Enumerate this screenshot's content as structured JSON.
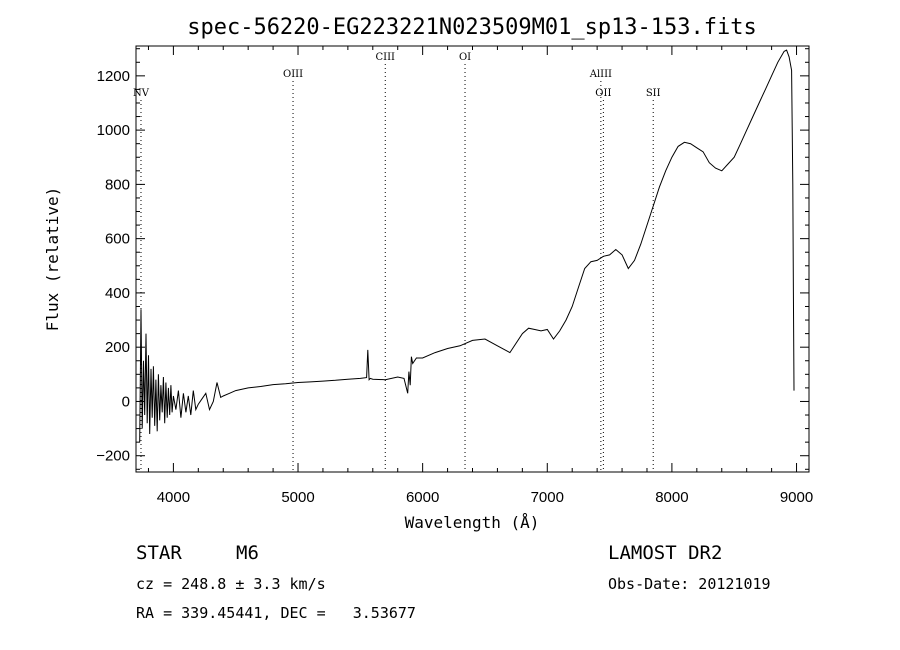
{
  "chart_data": {
    "type": "line",
    "title": "spec-56220-EG223221N023509M01_sp13-153.fits",
    "xlabel": "Wavelength (Å)",
    "ylabel": "Flux (relative)",
    "xlim": [
      3700,
      9100
    ],
    "ylim": [
      -260,
      1310
    ],
    "xticks": [
      4000,
      5000,
      6000,
      7000,
      8000,
      9000
    ],
    "yticks": [
      -200,
      0,
      200,
      400,
      600,
      800,
      1000,
      1200
    ],
    "grid": false,
    "series": [
      {
        "x": [
          3730,
          3740,
          3750,
          3760,
          3770,
          3780,
          3790,
          3800,
          3810,
          3820,
          3830,
          3840,
          3850,
          3860,
          3870,
          3880,
          3890,
          3900,
          3910,
          3920,
          3930,
          3940,
          3950,
          3960,
          3970,
          3980,
          3990,
          4000,
          4020,
          4040,
          4060,
          4080,
          4100,
          4120,
          4140,
          4160,
          4180,
          4200,
          4230,
          4260,
          4290,
          4320,
          4350,
          4380,
          4400,
          4450,
          4500,
          4550,
          4600,
          4700,
          4800,
          4900,
          5000,
          5100,
          5200,
          5300,
          5400,
          5500,
          5550,
          5560,
          5570,
          5580,
          5600,
          5700,
          5800,
          5850,
          5880,
          5890,
          5900,
          5910,
          5920,
          5950,
          6000,
          6100,
          6200,
          6300,
          6400,
          6500,
          6600,
          6700,
          6800,
          6850,
          6900,
          6950,
          7000,
          7050,
          7100,
          7150,
          7200,
          7250,
          7300,
          7350,
          7400,
          7450,
          7500,
          7550,
          7600,
          7650,
          7700,
          7750,
          7800,
          7850,
          7900,
          7950,
          8000,
          8050,
          8100,
          8150,
          8200,
          8250,
          8300,
          8350,
          8400,
          8450,
          8500,
          8550,
          8600,
          8650,
          8700,
          8750,
          8800,
          8850,
          8900,
          8920,
          8940,
          8960,
          8970,
          8975,
          8980
        ],
        "y": [
          -150,
          340,
          -100,
          150,
          -50,
          250,
          -80,
          170,
          -120,
          120,
          -60,
          130,
          -90,
          80,
          -110,
          100,
          -70,
          60,
          -40,
          90,
          -80,
          70,
          -60,
          50,
          -50,
          60,
          -40,
          20,
          -30,
          40,
          -60,
          30,
          -40,
          20,
          -50,
          40,
          -30,
          -10,
          10,
          30,
          -30,
          0,
          70,
          15,
          20,
          30,
          40,
          45,
          50,
          55,
          62,
          65,
          70,
          72,
          75,
          78,
          82,
          85,
          88,
          190,
          80,
          85,
          82,
          80,
          90,
          85,
          30,
          110,
          60,
          165,
          140,
          160,
          160,
          180,
          195,
          205,
          225,
          230,
          205,
          180,
          250,
          270,
          265,
          260,
          265,
          230,
          260,
          300,
          350,
          420,
          490,
          515,
          520,
          535,
          540,
          560,
          540,
          490,
          520,
          580,
          650,
          720,
          790,
          850,
          900,
          940,
          955,
          950,
          935,
          920,
          880,
          860,
          850,
          875,
          900,
          950,
          1000,
          1050,
          1100,
          1150,
          1200,
          1250,
          1290,
          1295,
          1270,
          1220,
          800,
          400,
          40
        ]
      }
    ],
    "line_markers": [
      {
        "label": "NV",
        "x": 3740,
        "row": 2
      },
      {
        "label": "OIII",
        "x": 4960,
        "row": 1
      },
      {
        "label": "CIII",
        "x": 5700,
        "row": 0
      },
      {
        "label": "OI",
        "x": 6340,
        "row": 0
      },
      {
        "label": "AlIII",
        "x": 7430,
        "row": 1
      },
      {
        "label": "OII",
        "x": 7450,
        "row": 2
      },
      {
        "label": "SII",
        "x": 7850,
        "row": 2
      }
    ]
  },
  "info": {
    "object_type": "STAR",
    "subclass": "M6",
    "survey": "LAMOST DR2",
    "redshift": "cz = 248.8 ± 3.3 km/s",
    "obs_date": "Obs-Date: 20121019",
    "coords": "RA = 339.45441, DEC =   3.53677"
  }
}
